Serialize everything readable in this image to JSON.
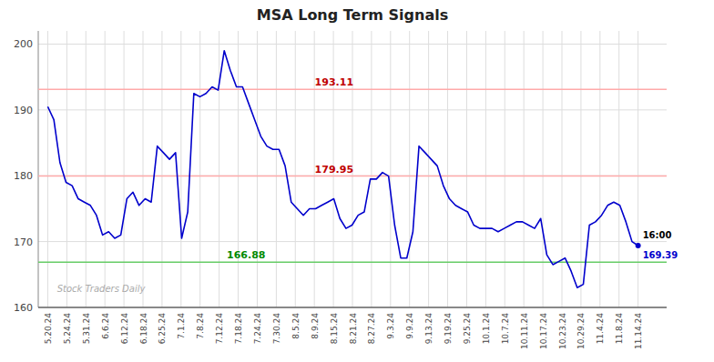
{
  "chart_data": {
    "type": "line",
    "title": "MSA Long Term Signals",
    "xlim": [
      -0.5,
      32.5
    ],
    "xticks": [
      {
        "value": 0,
        "label": "5.20.24"
      },
      {
        "value": 1,
        "label": "5.24.24"
      },
      {
        "value": 2,
        "label": "5.31.24"
      },
      {
        "value": 3,
        "label": "6.6.24"
      },
      {
        "value": 4,
        "label": "6.12.24"
      },
      {
        "value": 5,
        "label": "6.18.24"
      },
      {
        "value": 6,
        "label": "6.25.24"
      },
      {
        "value": 7,
        "label": "7.1.24"
      },
      {
        "value": 8,
        "label": "7.8.24"
      },
      {
        "value": 9,
        "label": "7.12.24"
      },
      {
        "value": 10,
        "label": "7.18.24"
      },
      {
        "value": 11,
        "label": "7.24.24"
      },
      {
        "value": 12,
        "label": "7.30.24"
      },
      {
        "value": 13,
        "label": "8.5.24"
      },
      {
        "value": 14,
        "label": "8.9.24"
      },
      {
        "value": 15,
        "label": "8.15.24"
      },
      {
        "value": 16,
        "label": "8.21.24"
      },
      {
        "value": 17,
        "label": "8.27.24"
      },
      {
        "value": 18,
        "label": "9.3.24"
      },
      {
        "value": 19,
        "label": "9.9.24"
      },
      {
        "value": 20,
        "label": "9.13.24"
      },
      {
        "value": 21,
        "label": "9.19.24"
      },
      {
        "value": 22,
        "label": "9.25.24"
      },
      {
        "value": 23,
        "label": "10.1.24"
      },
      {
        "value": 24,
        "label": "10.7.24"
      },
      {
        "value": 25,
        "label": "10.11.24"
      },
      {
        "value": 26,
        "label": "10.17.24"
      },
      {
        "value": 27,
        "label": "10.23.24"
      },
      {
        "value": 28,
        "label": "10.29.24"
      },
      {
        "value": 29,
        "label": "11.4.24"
      },
      {
        "value": 30,
        "label": "11.8.24"
      },
      {
        "value": 31,
        "label": "11.14.24"
      }
    ],
    "ylim": [
      160,
      202
    ],
    "yticks": [
      160,
      170,
      180,
      190,
      200
    ],
    "grid": true,
    "color": "#0000cc",
    "values": [
      190.5,
      188.5,
      182.0,
      179.0,
      178.5,
      176.5,
      176.0,
      175.5,
      174.0,
      171.0,
      171.5,
      170.5,
      171.0,
      176.5,
      177.5,
      175.5,
      176.5,
      176.0,
      184.5,
      183.5,
      182.5,
      183.5,
      170.5,
      174.5,
      192.5,
      192.0,
      192.5,
      193.5,
      193.0,
      199.0,
      196.0,
      193.5,
      193.5,
      191.0,
      188.5,
      186.0,
      184.5,
      184.0,
      184.0,
      181.5,
      176.0,
      175.0,
      174.0,
      175.0,
      175.0,
      175.5,
      176.0,
      176.5,
      173.5,
      172.0,
      172.5,
      174.0,
      174.5,
      179.5,
      179.5,
      180.5,
      179.95,
      172.5,
      167.5,
      167.5,
      171.5,
      184.5,
      183.5,
      182.5,
      181.5,
      178.5,
      176.5,
      175.5,
      175.0,
      174.5,
      172.5,
      172.0,
      172.0,
      172.0,
      171.5,
      172.0,
      172.5,
      173.0,
      173.0,
      172.5,
      172.0,
      173.5,
      168.0,
      166.5,
      167.0,
      167.5,
      165.5,
      163.0,
      163.5,
      172.5,
      173.0,
      174.0,
      175.5,
      176.0,
      175.5,
      173.0,
      170.0,
      169.39
    ],
    "lines": [
      {
        "value": 193.11,
        "label": "193.11",
        "color": "#ffaaaa"
      },
      {
        "value": 179.95,
        "label": "179.95",
        "color": "#ffaaaa"
      },
      {
        "value": 166.88,
        "label": "166.88",
        "color": "#66cc66"
      }
    ],
    "annotations": [
      {
        "text": "16:00"
      },
      {
        "text": "169.39",
        "color": "#0000cc"
      }
    ],
    "watermark": "Stock Traders Daily"
  }
}
